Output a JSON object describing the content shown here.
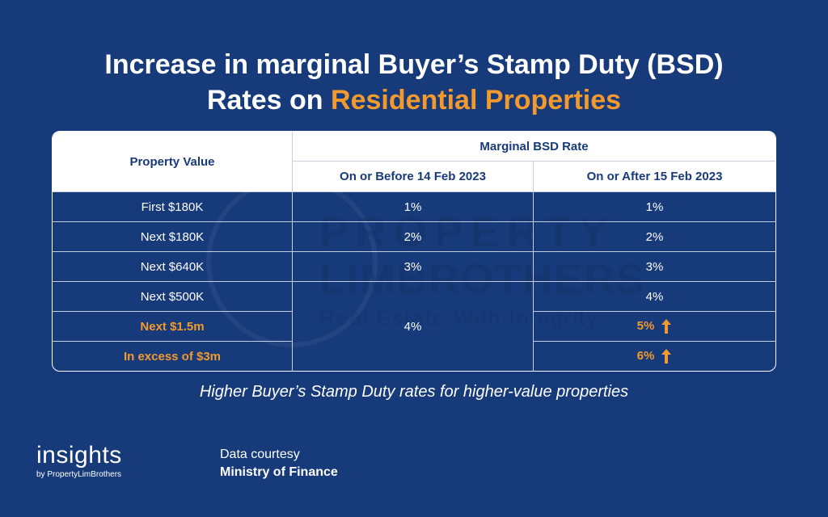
{
  "title": {
    "line1": "Increase in marginal Buyer’s Stamp Duty (BSD)",
    "line2_prefix": "Rates on ",
    "line2_highlight": "Residential Properties"
  },
  "watermark": {
    "line1": "PROPERTY",
    "line2": "LIMBROTHERS",
    "line3": "Real Estate With Integrity"
  },
  "table": {
    "col_property": "Property Value",
    "col_marginal": "Marginal BSD Rate",
    "col_before": "On or Before 14 Feb 2023",
    "col_after": "On or After 15 Feb 2023",
    "rows": [
      {
        "value": "First $180K",
        "before": "1%",
        "after": "1%"
      },
      {
        "value": "Next $180K",
        "before": "2%",
        "after": "2%"
      },
      {
        "value": "Next $640K",
        "before": "3%",
        "after": "3%"
      },
      {
        "value": "Next $500K",
        "before": "4%",
        "after": "4%"
      },
      {
        "value": "Next $1.5m",
        "after": "5%"
      },
      {
        "value": "In excess of $3m",
        "after": "6%"
      }
    ]
  },
  "caption": "Higher Buyer’s Stamp Duty rates for higher-value properties",
  "logo": {
    "main": "insights",
    "sub": "by PropertyLimBrothers"
  },
  "credit": {
    "line1": "Data courtesy",
    "line2": "Ministry of Finance"
  },
  "colors": {
    "background": "#173a7a",
    "accent": "#f39a2e",
    "header_bg": "#ffffff"
  },
  "icons": {
    "increase": "arrow-up-icon"
  }
}
